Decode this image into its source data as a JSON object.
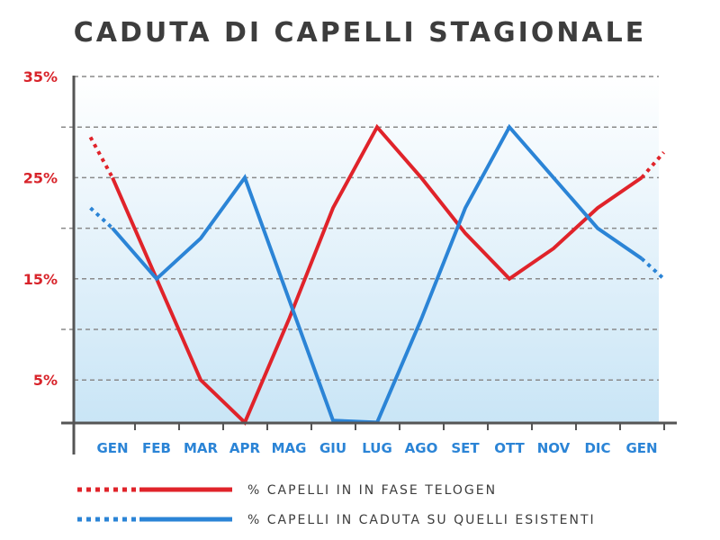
{
  "chart_data": {
    "type": "line",
    "title": "CADUTA DI CAPELLI STAGIONALE",
    "categories": [
      "GEN",
      "FEB",
      "MAR",
      "APR",
      "MAG",
      "GIU",
      "LUG",
      "AGO",
      "SET",
      "OTT",
      "NOV",
      "DIC",
      "GEN"
    ],
    "y_tick_labels": [
      "35%",
      "25%",
      "15%",
      "5%"
    ],
    "y_tick_values": [
      35,
      25,
      15,
      5
    ],
    "ylim": [
      0.8,
      35
    ],
    "grid": true,
    "legend_position": "bottom",
    "series": [
      {
        "name": "% CAPELLI IN IN FASE TELOGEN",
        "color": "#e0232a",
        "points": [
          {
            "x": -0.5,
            "y": 29
          },
          {
            "x": 0,
            "y": 25
          },
          {
            "x": 1,
            "y": 15
          },
          {
            "x": 2,
            "y": 5
          },
          {
            "x": 3,
            "y": 0.8
          },
          {
            "x": 4,
            "y": 11
          },
          {
            "x": 5,
            "y": 22
          },
          {
            "x": 6,
            "y": 30
          },
          {
            "x": 7,
            "y": 25
          },
          {
            "x": 8,
            "y": 19.5
          },
          {
            "x": 9,
            "y": 15
          },
          {
            "x": 10,
            "y": 18
          },
          {
            "x": 11,
            "y": 22
          },
          {
            "x": 12,
            "y": 25
          },
          {
            "x": 12.5,
            "y": 27.5
          }
        ]
      },
      {
        "name": "% CAPELLI IN CADUTA SU QUELLI ESISTENTI",
        "color": "#2b84d6",
        "points": [
          {
            "x": -0.5,
            "y": 22
          },
          {
            "x": 0,
            "y": 20
          },
          {
            "x": 1,
            "y": 15
          },
          {
            "x": 2,
            "y": 19
          },
          {
            "x": 3,
            "y": 25
          },
          {
            "x": 4,
            "y": 13
          },
          {
            "x": 5,
            "y": 1
          },
          {
            "x": 6,
            "y": 0.8
          },
          {
            "x": 7,
            "y": 11
          },
          {
            "x": 8,
            "y": 22
          },
          {
            "x": 9,
            "y": 30
          },
          {
            "x": 10,
            "y": 25
          },
          {
            "x": 11,
            "y": 20
          },
          {
            "x": 12,
            "y": 17
          },
          {
            "x": 12.5,
            "y": 15
          }
        ]
      }
    ]
  }
}
